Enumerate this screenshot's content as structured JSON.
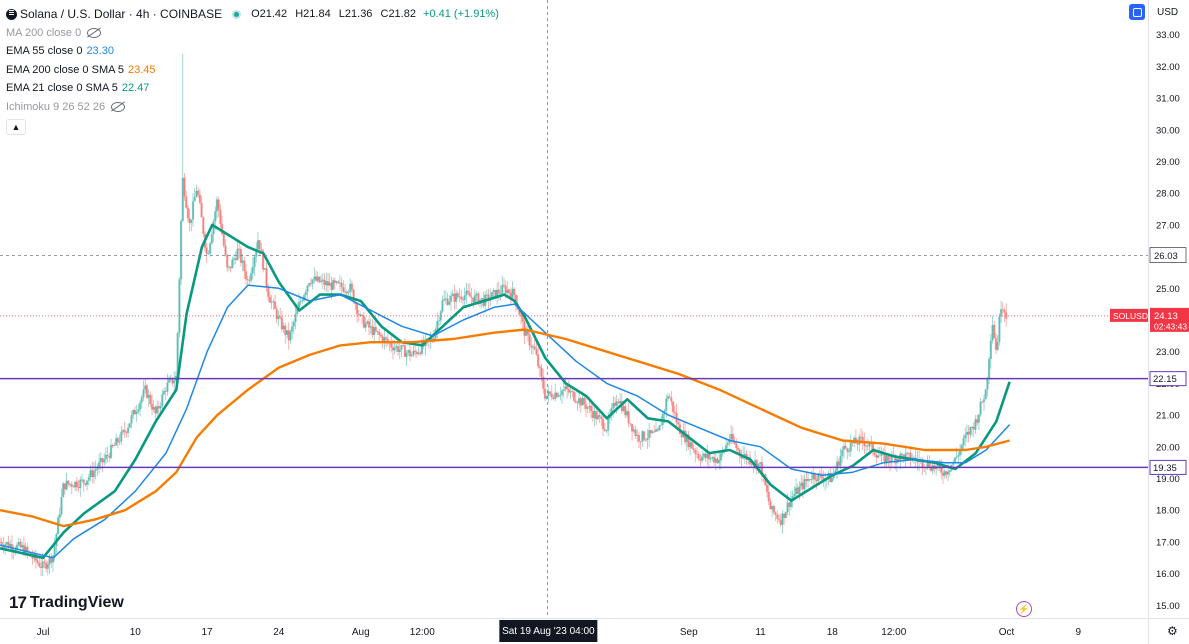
{
  "header": {
    "symbol_title": "Solana / U.S. Dollar · 4h · COINBASE",
    "open": "O21.42",
    "high": "H21.84",
    "low": "L21.36",
    "close": "C21.82",
    "change": "+0.41 (+1.91%)"
  },
  "indicators": [
    {
      "label": "MA 200 close 0",
      "value": "",
      "hidden": true
    },
    {
      "label": "EMA 55 close 0",
      "value": "23.30",
      "color": "#1e88e5"
    },
    {
      "label": "EMA 200 close 0 SMA 5",
      "value": "23.45",
      "color": "#f57c00"
    },
    {
      "label": "EMA 21 close 0 SMA 5",
      "value": "22.47",
      "color": "#089981"
    },
    {
      "label": "Ichimoku 9 26 52 26",
      "value": "",
      "hidden": true
    }
  ],
  "collapse_icon": "chevron-up-icon",
  "currency": "USD",
  "logo_text": "TradingView",
  "colors": {
    "up": "#26a69a",
    "down": "#ef5350",
    "ema21": "#089981",
    "ema55": "#1e88e5",
    "ema200": "#f57c00",
    "hline": "#673ab7",
    "price_label": "#f23645"
  },
  "chart_data": {
    "type": "line",
    "ylim": [
      14.6,
      33.4
    ],
    "y_ticks": [
      "15.00",
      "16.00",
      "17.00",
      "18.00",
      "19.00",
      "20.00",
      "21.00",
      "22.00",
      "23.00",
      "24.00",
      "25.00",
      "26.00",
      "27.00",
      "28.00",
      "29.00",
      "30.00",
      "31.00",
      "32.00",
      "33.00"
    ],
    "x_labels": [
      "Jul",
      "10",
      "17",
      "24",
      "Aug",
      "12:00",
      "Sep",
      "11",
      "18",
      "12:00",
      "Oct",
      "9"
    ],
    "x_label_pos": [
      0,
      9,
      16,
      23,
      31,
      37,
      63,
      70,
      77,
      83,
      94,
      101
    ],
    "x_range_days": [
      -4.2,
      107.8
    ],
    "crosshair": {
      "day": 49.2,
      "label": "Sat 19 Aug '23   04:00"
    },
    "horizontal_lines": [
      {
        "value": 22.15,
        "label": "22.15"
      },
      {
        "value": 19.35,
        "label": "19.35"
      }
    ],
    "dashed_level": {
      "value": 26.03,
      "label": "26.03"
    },
    "current_price": {
      "value": 24.13,
      "label": "SOLUSD",
      "price": "24.13",
      "countdown": "02:43:43"
    },
    "price_points": [
      {
        "day": -4.2,
        "price": 17.0
      },
      {
        "day": -2,
        "price": 16.8
      },
      {
        "day": 0,
        "price": 16.2
      },
      {
        "day": 1,
        "price": 16.6
      },
      {
        "day": 2,
        "price": 18.8
      },
      {
        "day": 4,
        "price": 18.9
      },
      {
        "day": 6,
        "price": 19.6
      },
      {
        "day": 8,
        "price": 20.5
      },
      {
        "day": 10,
        "price": 21.8
      },
      {
        "day": 11,
        "price": 21.0
      },
      {
        "day": 12,
        "price": 21.9
      },
      {
        "day": 13,
        "price": 22.2
      },
      {
        "day": 13.6,
        "price": 28.5
      },
      {
        "day": 14.3,
        "price": 27.0
      },
      {
        "day": 15,
        "price": 28.2
      },
      {
        "day": 16,
        "price": 26.0
      },
      {
        "day": 17,
        "price": 27.8
      },
      {
        "day": 18,
        "price": 25.5
      },
      {
        "day": 19,
        "price": 26.2
      },
      {
        "day": 20,
        "price": 25.2
      },
      {
        "day": 21,
        "price": 26.6
      },
      {
        "day": 22,
        "price": 24.8
      },
      {
        "day": 23,
        "price": 24.0
      },
      {
        "day": 24,
        "price": 23.4
      },
      {
        "day": 25,
        "price": 24.5
      },
      {
        "day": 26,
        "price": 25.3
      },
      {
        "day": 28,
        "price": 25.1
      },
      {
        "day": 30,
        "price": 25.0
      },
      {
        "day": 31,
        "price": 24.0
      },
      {
        "day": 32,
        "price": 23.7
      },
      {
        "day": 34,
        "price": 23.2
      },
      {
        "day": 36,
        "price": 22.9
      },
      {
        "day": 38,
        "price": 23.4
      },
      {
        "day": 39,
        "price": 24.6
      },
      {
        "day": 41,
        "price": 24.8
      },
      {
        "day": 43,
        "price": 24.6
      },
      {
        "day": 45,
        "price": 25.0
      },
      {
        "day": 46,
        "price": 24.8
      },
      {
        "day": 47,
        "price": 23.6
      },
      {
        "day": 48,
        "price": 23.0
      },
      {
        "day": 49,
        "price": 21.6
      },
      {
        "day": 51,
        "price": 21.8
      },
      {
        "day": 53,
        "price": 21.3
      },
      {
        "day": 55,
        "price": 20.6
      },
      {
        "day": 56,
        "price": 21.6
      },
      {
        "day": 58,
        "price": 20.3
      },
      {
        "day": 60,
        "price": 20.4
      },
      {
        "day": 61,
        "price": 21.7
      },
      {
        "day": 62,
        "price": 20.6
      },
      {
        "day": 64,
        "price": 19.7
      },
      {
        "day": 66,
        "price": 19.6
      },
      {
        "day": 67,
        "price": 20.3
      },
      {
        "day": 68,
        "price": 19.8
      },
      {
        "day": 70,
        "price": 19.4
      },
      {
        "day": 71,
        "price": 18.0
      },
      {
        "day": 72,
        "price": 17.7
      },
      {
        "day": 73,
        "price": 18.4
      },
      {
        "day": 75,
        "price": 19.1
      },
      {
        "day": 77,
        "price": 19.0
      },
      {
        "day": 78,
        "price": 19.9
      },
      {
        "day": 79,
        "price": 20.1
      },
      {
        "day": 80,
        "price": 20.2
      },
      {
        "day": 82,
        "price": 19.6
      },
      {
        "day": 84,
        "price": 19.7
      },
      {
        "day": 86,
        "price": 19.5
      },
      {
        "day": 88,
        "price": 19.2
      },
      {
        "day": 89,
        "price": 19.6
      },
      {
        "day": 90,
        "price": 20.3
      },
      {
        "day": 91,
        "price": 20.8
      },
      {
        "day": 92,
        "price": 21.8
      },
      {
        "day": 92.6,
        "price": 24.0
      },
      {
        "day": 93,
        "price": 23.0
      },
      {
        "day": 93.5,
        "price": 24.6
      },
      {
        "day": 94,
        "price": 24.13
      }
    ],
    "series": [
      {
        "name": "EMA 21 close 0 SMA 5",
        "points": [
          {
            "day": -4.2,
            "price": 16.8
          },
          {
            "day": 0,
            "price": 16.5
          },
          {
            "day": 2,
            "price": 17.3
          },
          {
            "day": 4,
            "price": 17.9
          },
          {
            "day": 7,
            "price": 18.6
          },
          {
            "day": 9,
            "price": 19.6
          },
          {
            "day": 11,
            "price": 20.8
          },
          {
            "day": 13,
            "price": 21.8
          },
          {
            "day": 14,
            "price": 24.2
          },
          {
            "day": 15.5,
            "price": 26.3
          },
          {
            "day": 16.5,
            "price": 27.0
          },
          {
            "day": 18,
            "price": 26.7
          },
          {
            "day": 20,
            "price": 26.3
          },
          {
            "day": 21.5,
            "price": 26.1
          },
          {
            "day": 23,
            "price": 25.2
          },
          {
            "day": 25,
            "price": 24.3
          },
          {
            "day": 27,
            "price": 24.8
          },
          {
            "day": 29,
            "price": 24.8
          },
          {
            "day": 31,
            "price": 24.6
          },
          {
            "day": 33,
            "price": 23.8
          },
          {
            "day": 35,
            "price": 23.3
          },
          {
            "day": 37,
            "price": 23.2
          },
          {
            "day": 39,
            "price": 23.8
          },
          {
            "day": 41,
            "price": 24.4
          },
          {
            "day": 43,
            "price": 24.6
          },
          {
            "day": 45,
            "price": 24.8
          },
          {
            "day": 46,
            "price": 24.6
          },
          {
            "day": 47,
            "price": 24.1
          },
          {
            "day": 49,
            "price": 22.8
          },
          {
            "day": 51,
            "price": 22.0
          },
          {
            "day": 53,
            "price": 21.6
          },
          {
            "day": 55,
            "price": 20.9
          },
          {
            "day": 57,
            "price": 21.5
          },
          {
            "day": 59,
            "price": 20.9
          },
          {
            "day": 61,
            "price": 20.8
          },
          {
            "day": 63,
            "price": 20.3
          },
          {
            "day": 65,
            "price": 19.8
          },
          {
            "day": 67,
            "price": 19.9
          },
          {
            "day": 69,
            "price": 19.6
          },
          {
            "day": 71,
            "price": 18.8
          },
          {
            "day": 73,
            "price": 18.3
          },
          {
            "day": 75,
            "price": 18.7
          },
          {
            "day": 77,
            "price": 19.1
          },
          {
            "day": 79,
            "price": 19.4
          },
          {
            "day": 81,
            "price": 19.9
          },
          {
            "day": 83,
            "price": 19.7
          },
          {
            "day": 85,
            "price": 19.6
          },
          {
            "day": 87,
            "price": 19.5
          },
          {
            "day": 89,
            "price": 19.3
          },
          {
            "day": 91,
            "price": 19.8
          },
          {
            "day": 93,
            "price": 20.8
          },
          {
            "day": 94.3,
            "price": 22.05
          }
        ]
      },
      {
        "name": "EMA 55 close 0",
        "points": [
          {
            "day": -4.2,
            "price": 16.9
          },
          {
            "day": 1,
            "price": 16.5
          },
          {
            "day": 3,
            "price": 17.1
          },
          {
            "day": 6,
            "price": 17.7
          },
          {
            "day": 9,
            "price": 18.6
          },
          {
            "day": 12,
            "price": 19.8
          },
          {
            "day": 14,
            "price": 21.2
          },
          {
            "day": 16,
            "price": 23.0
          },
          {
            "day": 18,
            "price": 24.4
          },
          {
            "day": 20,
            "price": 25.1
          },
          {
            "day": 23,
            "price": 25.0
          },
          {
            "day": 26,
            "price": 24.6
          },
          {
            "day": 29,
            "price": 24.8
          },
          {
            "day": 32,
            "price": 24.3
          },
          {
            "day": 35,
            "price": 23.8
          },
          {
            "day": 38,
            "price": 23.5
          },
          {
            "day": 41,
            "price": 24.0
          },
          {
            "day": 44,
            "price": 24.4
          },
          {
            "day": 46,
            "price": 24.5
          },
          {
            "day": 49,
            "price": 23.6
          },
          {
            "day": 52,
            "price": 22.7
          },
          {
            "day": 55,
            "price": 22.0
          },
          {
            "day": 58,
            "price": 21.6
          },
          {
            "day": 61,
            "price": 21.0
          },
          {
            "day": 64,
            "price": 20.6
          },
          {
            "day": 67,
            "price": 20.2
          },
          {
            "day": 70,
            "price": 20.0
          },
          {
            "day": 73,
            "price": 19.3
          },
          {
            "day": 76,
            "price": 19.1
          },
          {
            "day": 79,
            "price": 19.2
          },
          {
            "day": 82,
            "price": 19.5
          },
          {
            "day": 85,
            "price": 19.6
          },
          {
            "day": 88,
            "price": 19.5
          },
          {
            "day": 90,
            "price": 19.5
          },
          {
            "day": 92,
            "price": 19.9
          },
          {
            "day": 94.3,
            "price": 20.7
          }
        ]
      },
      {
        "name": "EMA 200 close 0 SMA 5",
        "points": [
          {
            "day": -4.2,
            "price": 18.0
          },
          {
            "day": -1,
            "price": 17.8
          },
          {
            "day": 2,
            "price": 17.5
          },
          {
            "day": 5,
            "price": 17.7
          },
          {
            "day": 8,
            "price": 18.0
          },
          {
            "day": 11,
            "price": 18.6
          },
          {
            "day": 13,
            "price": 19.2
          },
          {
            "day": 15,
            "price": 20.3
          },
          {
            "day": 17,
            "price": 21.0
          },
          {
            "day": 20,
            "price": 21.8
          },
          {
            "day": 23,
            "price": 22.5
          },
          {
            "day": 26,
            "price": 22.9
          },
          {
            "day": 29,
            "price": 23.2
          },
          {
            "day": 32,
            "price": 23.3
          },
          {
            "day": 36,
            "price": 23.3
          },
          {
            "day": 40,
            "price": 23.4
          },
          {
            "day": 44,
            "price": 23.6
          },
          {
            "day": 47,
            "price": 23.7
          },
          {
            "day": 51,
            "price": 23.4
          },
          {
            "day": 55,
            "price": 23.0
          },
          {
            "day": 58,
            "price": 22.7
          },
          {
            "day": 62,
            "price": 22.3
          },
          {
            "day": 66,
            "price": 21.8
          },
          {
            "day": 70,
            "price": 21.2
          },
          {
            "day": 74,
            "price": 20.6
          },
          {
            "day": 78,
            "price": 20.2
          },
          {
            "day": 82,
            "price": 20.1
          },
          {
            "day": 86,
            "price": 19.9
          },
          {
            "day": 90,
            "price": 19.9
          },
          {
            "day": 92,
            "price": 20.0
          },
          {
            "day": 94.3,
            "price": 20.2
          }
        ]
      }
    ]
  }
}
